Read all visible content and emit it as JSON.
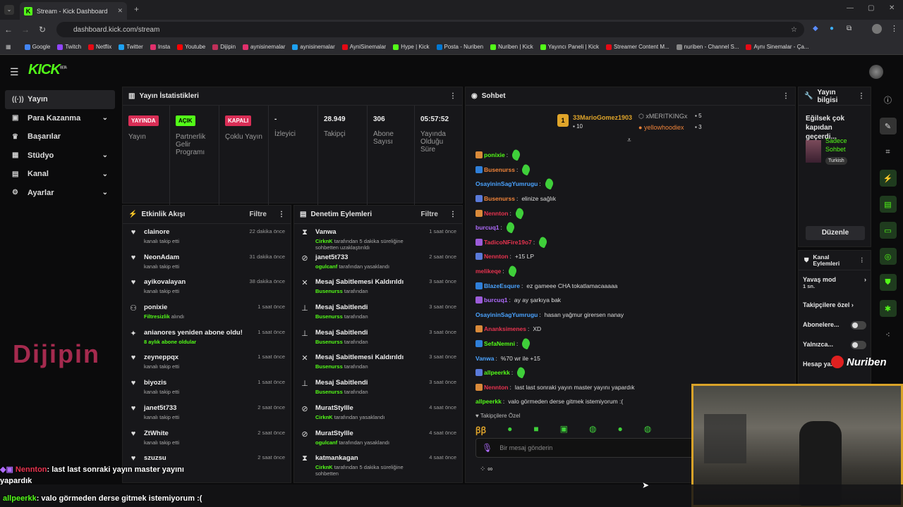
{
  "browser": {
    "tab_title": "Stream - Kick Dashboard",
    "url": "dashboard.kick.com/stream",
    "bookmarks": [
      "Google",
      "Twitch",
      "Netflix",
      "Twitter",
      "Insta",
      "Youtube",
      "Dijipin",
      "aynisinemalar",
      "aynisinemalar",
      "AyniSinemalar",
      "Hype | Kick",
      "Posta - Nuriben",
      "Nuriben | Kick",
      "Yayıncı Paneli | Kick",
      "Streamer Content M...",
      "nuriben - Channel S...",
      "Aynı Sinemalar - Ça..."
    ]
  },
  "brand": {
    "logo": "KICK",
    "beta": "BETA",
    "accent": "#53fc18"
  },
  "sidebar": {
    "items": [
      {
        "label": "Yayın",
        "icon": "broadcast-icon"
      },
      {
        "label": "Para Kazanma",
        "icon": "money-icon"
      },
      {
        "label": "Başarılar",
        "icon": "trophy-icon"
      },
      {
        "label": "Stüdyo",
        "icon": "studio-icon"
      },
      {
        "label": "Kanal",
        "icon": "channel-icon"
      },
      {
        "label": "Ayarlar",
        "icon": "gear-icon"
      }
    ]
  },
  "stats": {
    "title": "Yayın İstatistikleri",
    "cards": [
      {
        "badge": "YAYINDA",
        "label": "Yayın"
      },
      {
        "badge": "AÇIK",
        "label": "Partnerlik Gelir Programı"
      },
      {
        "badge": "KAPALI",
        "label": "Çoklu Yayın"
      },
      {
        "value": "-",
        "label": "İzleyici"
      },
      {
        "value": "28.949",
        "label": "Takipçi"
      },
      {
        "value": "306",
        "label": "Abone Sayısı"
      },
      {
        "value": "05:57:52",
        "label": "Yayında Olduğu Süre"
      }
    ]
  },
  "activity": {
    "title": "Etkinlik Akışı",
    "filter": "Filtre",
    "items": [
      {
        "name": "clainore",
        "sub": "kanalı takip etti",
        "time": "22 dakika önce"
      },
      {
        "name": "NeonAdam",
        "sub": "kanalı takip etti",
        "time": "31 dakika önce"
      },
      {
        "name": "ayikovalayan",
        "sub": "kanalı takip etti",
        "time": "38 dakika önce"
      },
      {
        "name": "ponixie",
        "sub_hl": "Filtresizlik",
        "sub": "alındı",
        "time": "1 saat önce"
      },
      {
        "name": "anianores yeniden abone oldu!",
        "sub_hl": "8 aylık abone oldular",
        "sub": "",
        "time": "1 saat önce"
      },
      {
        "name": "zeyneppqx",
        "sub": "kanalı takip etti",
        "time": "1 saat önce"
      },
      {
        "name": "biyozis",
        "sub": "kanalı takip etti",
        "time": "1 saat önce"
      },
      {
        "name": "janet5t733",
        "sub": "kanalı takip etti",
        "time": "2 saat önce"
      },
      {
        "name": "ZtWhite",
        "sub": "kanalı takip etti",
        "time": "2 saat önce"
      },
      {
        "name": "szuzsu",
        "sub": "",
        "time": "2 saat önce"
      }
    ]
  },
  "moderation": {
    "title": "Denetim Eylemleri",
    "filter": "Filtre",
    "items": [
      {
        "name": "Vanwa",
        "actor": "CirknK",
        "sub": "tarafından 5 dakika süreliğine sohbetten uzaklaştırıldı",
        "time": "1 saat önce",
        "icon": "hourglass-icon"
      },
      {
        "name": "janet5t733",
        "actor": "ogulcanf",
        "sub": "tarafından yasaklandı",
        "time": "2 saat önce",
        "icon": "ban-icon"
      },
      {
        "name": "Mesaj Sabitlemesi Kaldırıldı",
        "actor": "Busenurss",
        "sub": "tarafından",
        "time": "3 saat önce",
        "icon": "unpin-icon"
      },
      {
        "name": "Mesaj Sabitlendi",
        "actor": "Busenurss",
        "sub": "tarafından",
        "time": "3 saat önce",
        "icon": "pin-icon"
      },
      {
        "name": "Mesaj Sabitlendi",
        "actor": "Busenurss",
        "sub": "tarafından",
        "time": "3 saat önce",
        "icon": "pin-icon"
      },
      {
        "name": "Mesaj Sabitlemesi Kaldırıldı",
        "actor": "Busenurss",
        "sub": "tarafından",
        "time": "3 saat önce",
        "icon": "unpin-icon"
      },
      {
        "name": "Mesaj Sabitlendi",
        "actor": "Busenurss",
        "sub": "tarafından",
        "time": "3 saat önce",
        "icon": "pin-icon"
      },
      {
        "name": "MuratStyllle",
        "actor": "CirknK",
        "sub": "tarafından yasaklandı",
        "time": "4 saat önce",
        "icon": "ban-icon"
      },
      {
        "name": "MuratStyllle",
        "actor": "ogulcanf",
        "sub": "tarafından yasaklandı",
        "time": "4 saat önce",
        "icon": "ban-icon"
      },
      {
        "name": "katmankagan",
        "actor": "CirknK",
        "sub": "tarafından 5 dakika süreliğine sohbetten",
        "time": "4 saat önce",
        "icon": "hourglass-icon"
      }
    ]
  },
  "chat": {
    "title": "Sohbet",
    "top_gifters": [
      {
        "name": "33MarioGomez1903",
        "count": "10"
      },
      {
        "name": "xMERITKINGx",
        "count": "5"
      },
      {
        "name": "yellowhoodiex",
        "count": "3"
      }
    ],
    "messages": [
      {
        "user": "ponixie",
        "color": "#53fc18",
        "text": "",
        "emote": true
      },
      {
        "user": "Busenurss",
        "color": "#f0843a",
        "text": "",
        "emote": true
      },
      {
        "user": "OsayininSagYumrugu",
        "color": "#4aa3ff",
        "text": "",
        "emote": true
      },
      {
        "user": "Busenurss",
        "color": "#f0843a",
        "text": "elinize sağlık",
        "emote": false
      },
      {
        "user": "Nennton",
        "color": "#e8334f",
        "text": "",
        "emote": true
      },
      {
        "user": "burcuq1",
        "color": "#b06cff",
        "text": "",
        "emote": true
      },
      {
        "user": "TadicoNFire19o7",
        "color": "#e8334f",
        "text": "",
        "emote": true
      },
      {
        "user": "Nennton",
        "color": "#e8334f",
        "text": "+15 LP",
        "emote": false
      },
      {
        "user": "melikeqe",
        "color": "#e8334f",
        "text": "",
        "emote": true
      },
      {
        "user": "BlazeEsqure",
        "color": "#4aa3ff",
        "text": "ez gameee CHA tokatlamacaaaaa",
        "emote": false
      },
      {
        "user": "burcuq1",
        "color": "#b06cff",
        "text": "ay ay şarkıya bak",
        "emote": false
      },
      {
        "user": "OsayininSagYumrugu",
        "color": "#4aa3ff",
        "text": "hasan yağmur girersen nanay",
        "emote": false
      },
      {
        "user": "Ananksimenes",
        "color": "#e8334f",
        "text": "XD",
        "emote": false
      },
      {
        "user": "SefaNemni",
        "color": "#53fc18",
        "text": "",
        "emote": true
      },
      {
        "user": "Vanwa",
        "color": "#4aa3ff",
        "text": "%70 wr ile +15",
        "emote": false
      },
      {
        "user": "allpeerkk",
        "color": "#53fc18",
        "text": "",
        "emote": true
      },
      {
        "user": "Nennton",
        "color": "#e8334f",
        "text": "last last sonraki yayın master yayını yapardık",
        "emote": false
      },
      {
        "user": "allpeerkk",
        "color": "#53fc18",
        "text": "valo görmeden derse gitmek istemiyorum :(",
        "emote": false
      }
    ],
    "followers_only": "Takipçilere Özel",
    "input_placeholder": "Bir mesaj gönderin"
  },
  "stream_info": {
    "title": "Yayın bilgisi",
    "stream_title": "Eğilsek çok kapıdan geçerdi...",
    "category": "Sadece Sohbet",
    "language": "Turkish",
    "edit": "Düzenle"
  },
  "channel_actions": {
    "title": "Kanal Eylemleri",
    "slow_mode": "Yavaş mod",
    "slow_mode_value": "1 sn.",
    "followers_only": "Takipçilere özel",
    "subscribers": "Abonelere...",
    "only": "Yalnızca...",
    "account": "Hesap ya..."
  },
  "overlay": {
    "line1_user": "Nennton",
    "line1_text": ": last last sonraki yayın master yayını",
    "line2_text": "yapardık",
    "line3_user": "allpeerkk",
    "line3_text": ": valo görmeden derse gitmek istemiyorum :(",
    "watermark_left": "Dijipin",
    "watermark_right": "Nuriben"
  }
}
